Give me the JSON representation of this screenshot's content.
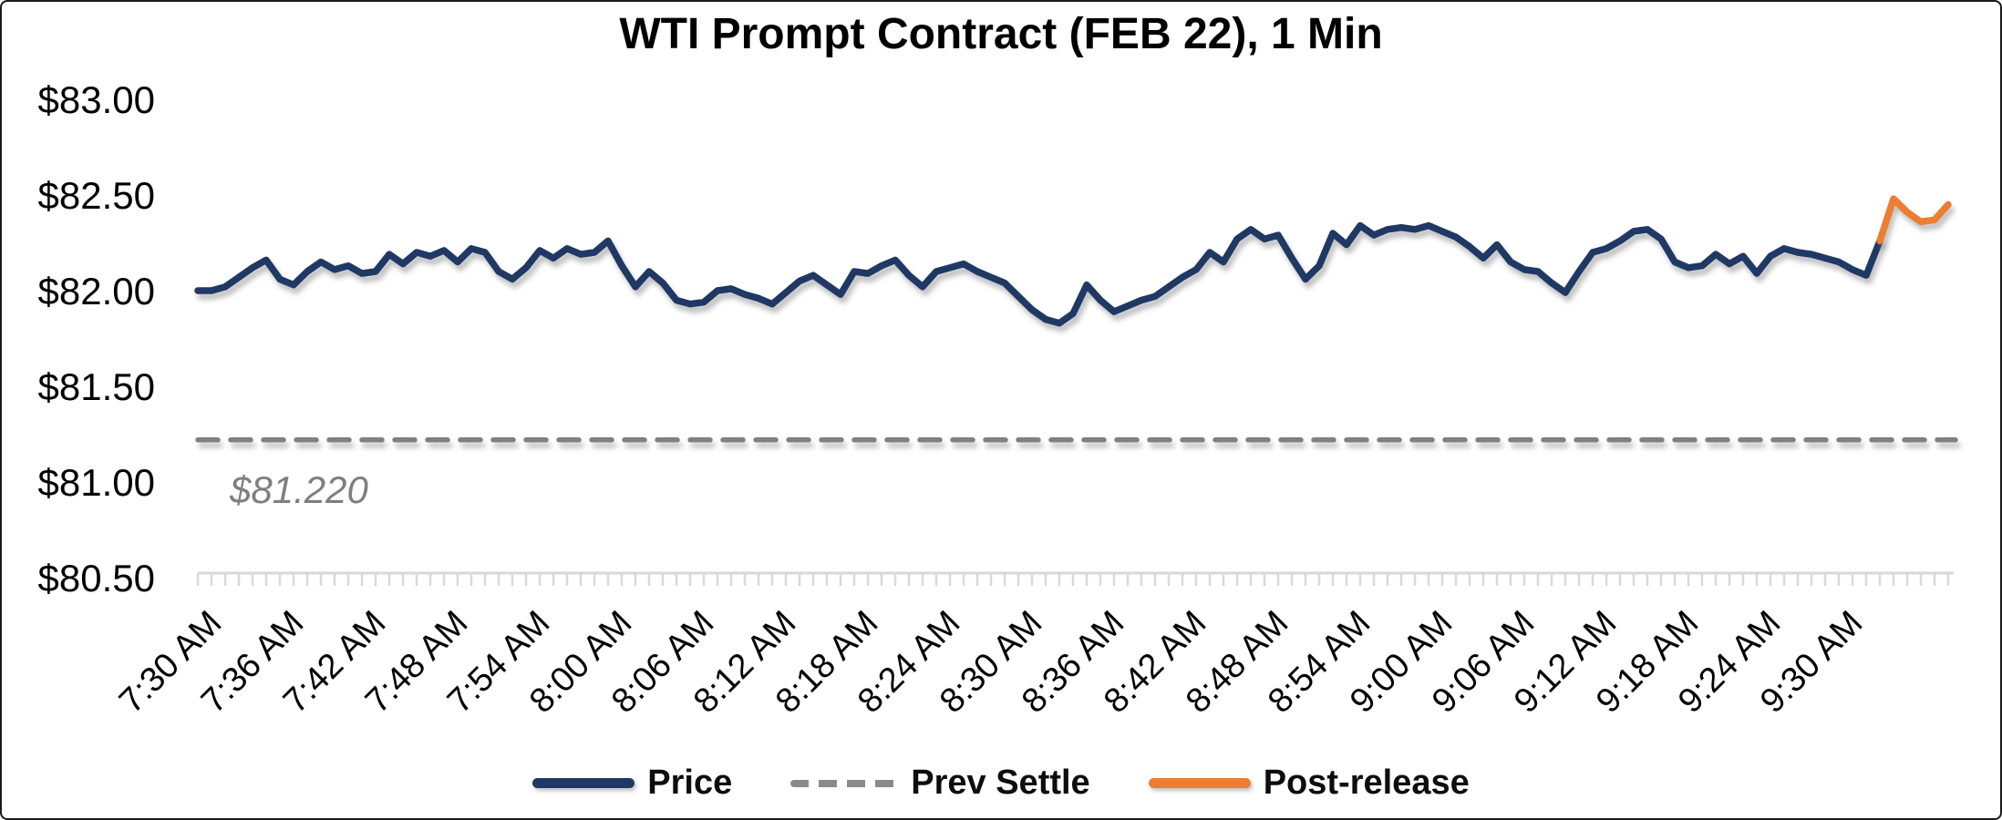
{
  "chart_data": {
    "type": "line",
    "title": "WTI Prompt Contract (FEB 22), 1 Min",
    "y_axis": {
      "min": 80.5,
      "max": 83.0,
      "tick_format": "$0.00",
      "ticks": [
        {
          "label": "$83.00",
          "value": 83.0
        },
        {
          "label": "$82.50",
          "value": 82.5
        },
        {
          "label": "$82.00",
          "value": 82.0
        },
        {
          "label": "$81.50",
          "value": 81.5
        },
        {
          "label": "$81.00",
          "value": 81.0
        },
        {
          "label": "$80.50",
          "value": 80.5
        }
      ]
    },
    "x_axis": {
      "start_time": "7:30 AM",
      "end_time": "9:38 AM",
      "minor_tick_interval_minutes": 1,
      "label_interval_minutes": 6,
      "total_minutes": 128,
      "labels": [
        "7:30 AM",
        "7:36 AM",
        "7:42 AM",
        "7:48 AM",
        "7:54 AM",
        "8:00 AM",
        "8:06 AM",
        "8:12 AM",
        "8:18 AM",
        "8:24 AM",
        "8:30 AM",
        "8:36 AM",
        "8:42 AM",
        "8:48 AM",
        "8:54 AM",
        "9:00 AM",
        "9:06 AM",
        "9:12 AM",
        "9:18 AM",
        "9:24 AM",
        "9:30 AM"
      ]
    },
    "series": [
      {
        "name": "Price",
        "color": "#1f3864",
        "style": "solid",
        "start_time": "7:30 AM",
        "interval_minutes": 1,
        "start_offset_minutes": 0,
        "values": [
          82.0,
          82.0,
          82.02,
          82.07,
          82.12,
          82.16,
          82.06,
          82.03,
          82.1,
          82.15,
          82.11,
          82.13,
          82.09,
          82.1,
          82.19,
          82.14,
          82.2,
          82.18,
          82.21,
          82.15,
          82.22,
          82.2,
          82.1,
          82.06,
          82.12,
          82.21,
          82.17,
          82.22,
          82.19,
          82.2,
          82.26,
          82.13,
          82.02,
          82.1,
          82.04,
          81.95,
          81.93,
          81.94,
          82.0,
          82.01,
          81.98,
          81.96,
          81.93,
          81.99,
          82.05,
          82.08,
          82.03,
          81.98,
          82.1,
          82.09,
          82.13,
          82.16,
          82.08,
          82.02,
          82.1,
          82.12,
          82.14,
          82.1,
          82.07,
          82.04,
          81.97,
          81.9,
          81.85,
          81.83,
          81.88,
          82.03,
          81.95,
          81.89,
          81.92,
          81.95,
          81.97,
          82.02,
          82.07,
          82.11,
          82.2,
          82.15,
          82.27,
          82.32,
          82.27,
          82.29,
          82.17,
          82.06,
          82.13,
          82.3,
          82.24,
          82.34,
          82.29,
          82.32,
          82.33,
          82.32,
          82.34,
          82.31,
          82.28,
          82.23,
          82.17,
          82.24,
          82.15,
          82.11,
          82.1,
          82.04,
          81.99,
          82.1,
          82.2,
          82.22,
          82.26,
          82.31,
          82.32,
          82.27,
          82.15,
          82.12,
          82.13,
          82.19,
          82.14,
          82.18,
          82.09,
          82.18,
          82.22,
          82.2,
          82.19,
          82.17,
          82.15,
          82.11,
          82.08,
          82.26
        ]
      },
      {
        "name": "Prev Settle",
        "color": "#808080",
        "style": "dashed",
        "value": 81.22
      },
      {
        "name": "Post-release",
        "color": "#ED7D31",
        "style": "solid",
        "start_time": "9:33 AM",
        "interval_minutes": 1,
        "start_offset_minutes": 123,
        "values": [
          82.26,
          82.48,
          82.41,
          82.36,
          82.37,
          82.45
        ]
      }
    ],
    "annotation": {
      "text": "$81.220",
      "value": 81.22,
      "color": "#7f7f7f"
    },
    "legend": [
      {
        "label": "Price",
        "color": "#1f3864",
        "style": "solid"
      },
      {
        "label": "Prev Settle",
        "color": "#8a8a8a",
        "style": "dashed"
      },
      {
        "label": "Post-release",
        "color": "#ED7D31",
        "style": "solid"
      }
    ],
    "grid": "off",
    "legend_position": "bottom-center"
  }
}
